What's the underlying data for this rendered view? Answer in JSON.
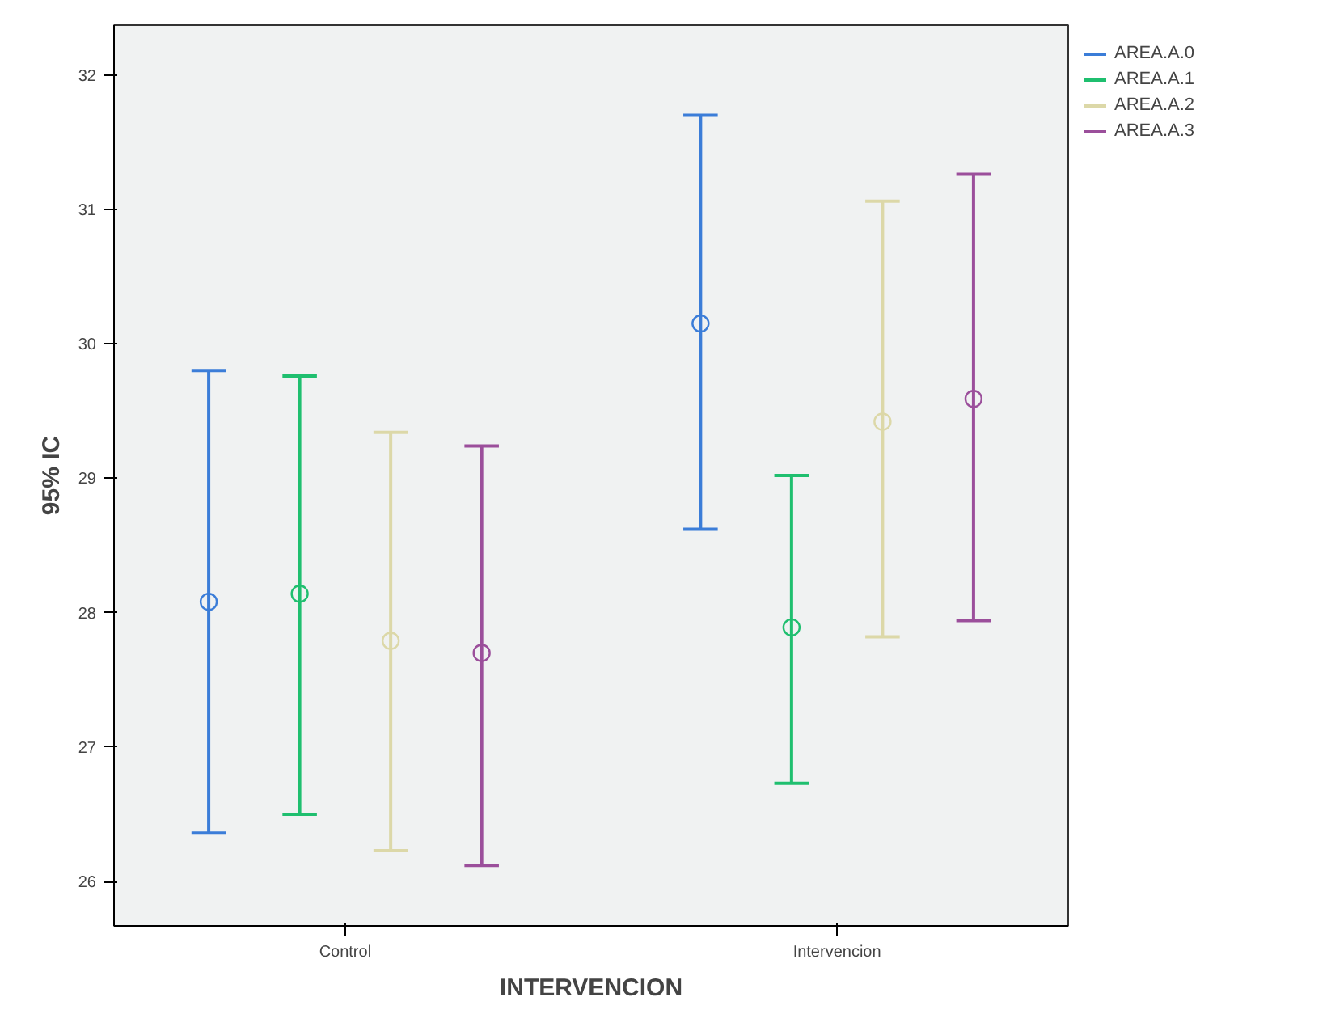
{
  "chart_data": {
    "type": "scatter",
    "xlabel": "INTERVENCION",
    "ylabel": "95% IC",
    "categories": [
      "Control",
      "Intervencion"
    ],
    "series": [
      {
        "name": "AREA.A.0",
        "color": "#3b7dd8",
        "values": [
          28.08,
          30.15
        ],
        "errors": [
          [
            26.36,
            29.8
          ],
          [
            28.62,
            31.7
          ]
        ]
      },
      {
        "name": "AREA.A.1",
        "color": "#1fbf6f",
        "values": [
          28.14,
          27.89
        ],
        "errors": [
          [
            26.5,
            29.76
          ],
          [
            26.73,
            29.02
          ]
        ]
      },
      {
        "name": "AREA.A.2",
        "color": "#dcd8a8",
        "values": [
          27.79,
          29.42
        ],
        "errors": [
          [
            26.23,
            29.34
          ],
          [
            27.82,
            31.06
          ]
        ]
      },
      {
        "name": "AREA.A.3",
        "color": "#9b4f9b",
        "values": [
          27.7,
          29.59
        ],
        "errors": [
          [
            26.12,
            29.24
          ],
          [
            27.94,
            31.26
          ]
        ]
      }
    ],
    "ylim": [
      25.67,
      32.37
    ],
    "yticks": [
      26,
      27,
      28,
      29,
      30,
      31,
      32
    ],
    "grid": false,
    "legend": "top right",
    "marker": "circle"
  }
}
